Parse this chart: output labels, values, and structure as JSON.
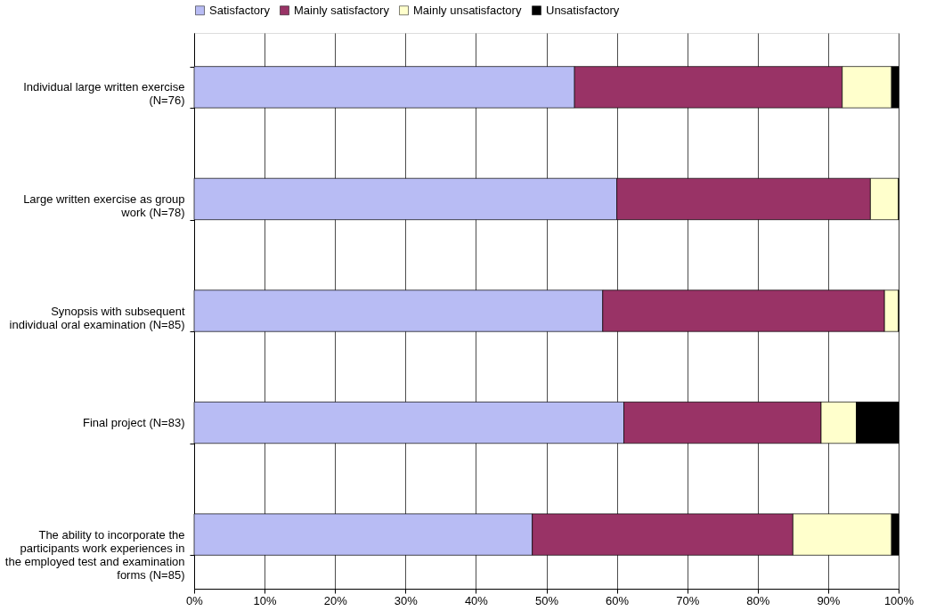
{
  "chart_data": {
    "type": "bar",
    "orientation": "horizontal",
    "stacked": true,
    "categories": [
      "Individual large written exercise (N=76)",
      "Large written exercise as group work (N=78)",
      "Synopsis with subsequent individual oral examination (N=85)",
      "Final project (N=83)",
      "The ability to incorporate the participants work experiences in the employed test and examination forms (N=85)"
    ],
    "series": [
      {
        "name": "Satisfactory",
        "color": "#b8bcf4",
        "values": [
          54,
          60,
          58,
          61,
          48
        ]
      },
      {
        "name": "Mainly satisfactory",
        "color": "#993366",
        "values": [
          38,
          36,
          40,
          28,
          37
        ]
      },
      {
        "name": "Mainly unsatisfactory",
        "color": "#ffffcc",
        "values": [
          7,
          4,
          2,
          5,
          14
        ]
      },
      {
        "name": "Unsatisfactory",
        "color": "#000000",
        "values": [
          1,
          0,
          0,
          6,
          1
        ]
      }
    ],
    "xlim": [
      0,
      100
    ],
    "xticks": [
      {
        "value": 0,
        "label": "0%"
      },
      {
        "value": 10,
        "label": "10%"
      },
      {
        "value": 20,
        "label": "20%"
      },
      {
        "value": 30,
        "label": "30%"
      },
      {
        "value": 40,
        "label": "40%"
      },
      {
        "value": 50,
        "label": "50%"
      },
      {
        "value": 60,
        "label": "60%"
      },
      {
        "value": 70,
        "label": "70%"
      },
      {
        "value": 80,
        "label": "80%"
      },
      {
        "value": 90,
        "label": "90%"
      },
      {
        "value": 100,
        "label": "100%"
      }
    ],
    "grid": "x",
    "legend": "top"
  }
}
